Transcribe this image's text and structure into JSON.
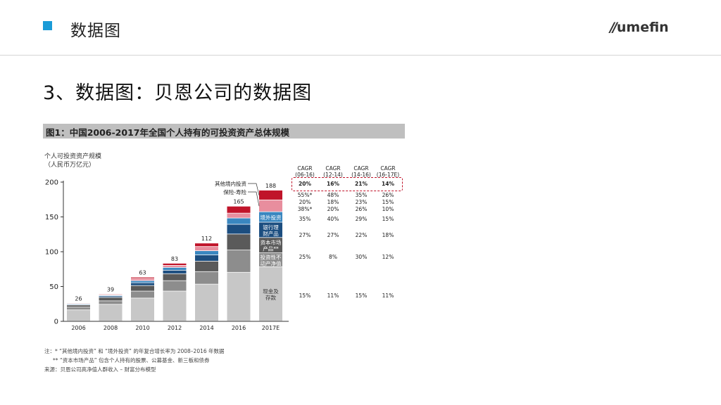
{
  "header": {
    "title": "数据图",
    "logo_mark": "//",
    "logo_text": "umefin",
    "square_color": "#1a9bd7"
  },
  "slide_title": "3、数据图：贝恩公司的数据图",
  "figure_title": "图1：中国2006-2017年全国个人持有的可投资资产总体规模",
  "ylabel_lines": [
    "个人可投资资产规模",
    "（人民币万亿元）"
  ],
  "chart_data": {
    "type": "bar",
    "stacked": true,
    "categories": [
      "2006",
      "2008",
      "2010",
      "2012",
      "2014",
      "2016",
      "2017E"
    ],
    "totals": [
      26,
      39,
      63,
      83,
      112,
      165,
      188
    ],
    "ylim": [
      0,
      200
    ],
    "yticks": [
      0,
      50,
      100,
      150,
      200
    ],
    "series": [
      {
        "name": "现金及存款",
        "color": "#c7c7c7",
        "values": [
          16,
          24,
          33,
          43,
          53,
          70,
          78
        ]
      },
      {
        "name": "投资性不动产净值",
        "color": "#8d8d8d",
        "values": [
          4,
          5,
          10,
          15,
          18,
          32,
          20
        ]
      },
      {
        "name": "资本市场产品**",
        "color": "#5a5a5a",
        "values": [
          3,
          5,
          8,
          10,
          15,
          23,
          22
        ]
      },
      {
        "name": "银行理财产品",
        "color": "#1c4e80",
        "values": [
          1,
          2,
          4,
          5,
          9,
          14,
          22
        ]
      },
      {
        "name": "境外投资",
        "color": "#3a87c0",
        "values": [
          1,
          1,
          3,
          4,
          6,
          9,
          15
        ]
      },
      {
        "name": "保险-寿险",
        "color": "#e88e9e",
        "values": [
          1,
          1,
          3,
          3,
          6,
          7,
          17
        ]
      },
      {
        "name": "其他境内投资",
        "color": "#c0142a",
        "values": [
          0,
          1,
          2,
          3,
          5,
          10,
          14
        ]
      }
    ],
    "labels_in_bar": [
      {
        "text": "境外投资",
        "series": 4,
        "fill": "#ffffff"
      },
      {
        "text": "银行理财产品",
        "series": 3,
        "fill": "#ffffff"
      },
      {
        "text": "资本市场产品**",
        "series": 2,
        "fill": "#ffffff"
      },
      {
        "text": "投资性不动产净值",
        "series": 1,
        "fill": "#ffffff"
      },
      {
        "text": "现金及存款",
        "series": 0,
        "fill": "#333333"
      }
    ],
    "callouts": [
      "其他境内投资",
      "保险-寿险"
    ]
  },
  "cagr": {
    "headers": [
      "CAGR\n(06-16)",
      "CAGR\n(12-14)",
      "CAGR\n(14-16)",
      "CAGR\n(16-17E)"
    ],
    "total_row": [
      "20%",
      "16%",
      "21%",
      "14%"
    ],
    "rows": [
      [
        "55%*",
        "48%",
        "35%",
        "26%"
      ],
      [
        "20%",
        "18%",
        "23%",
        "15%"
      ],
      [
        "38%*",
        "20%",
        "26%",
        "10%"
      ],
      [
        "35%",
        "40%",
        "29%",
        "15%"
      ],
      [
        "27%",
        "27%",
        "22%",
        "18%"
      ],
      [
        "25%",
        "8%",
        "30%",
        "12%"
      ],
      [
        "15%",
        "11%",
        "15%",
        "11%"
      ]
    ],
    "box_color": "#c0142a"
  },
  "footnotes": [
    "注：* “其他境内投资” 和 “境外投资” 的年复合增长率为 2008–2016 年数据",
    "** “资本市场产品” 包含个人持有的股票、公募基金、新三板和债券",
    "来源：贝恩公司高净值人群收入 – 财富分布模型"
  ]
}
